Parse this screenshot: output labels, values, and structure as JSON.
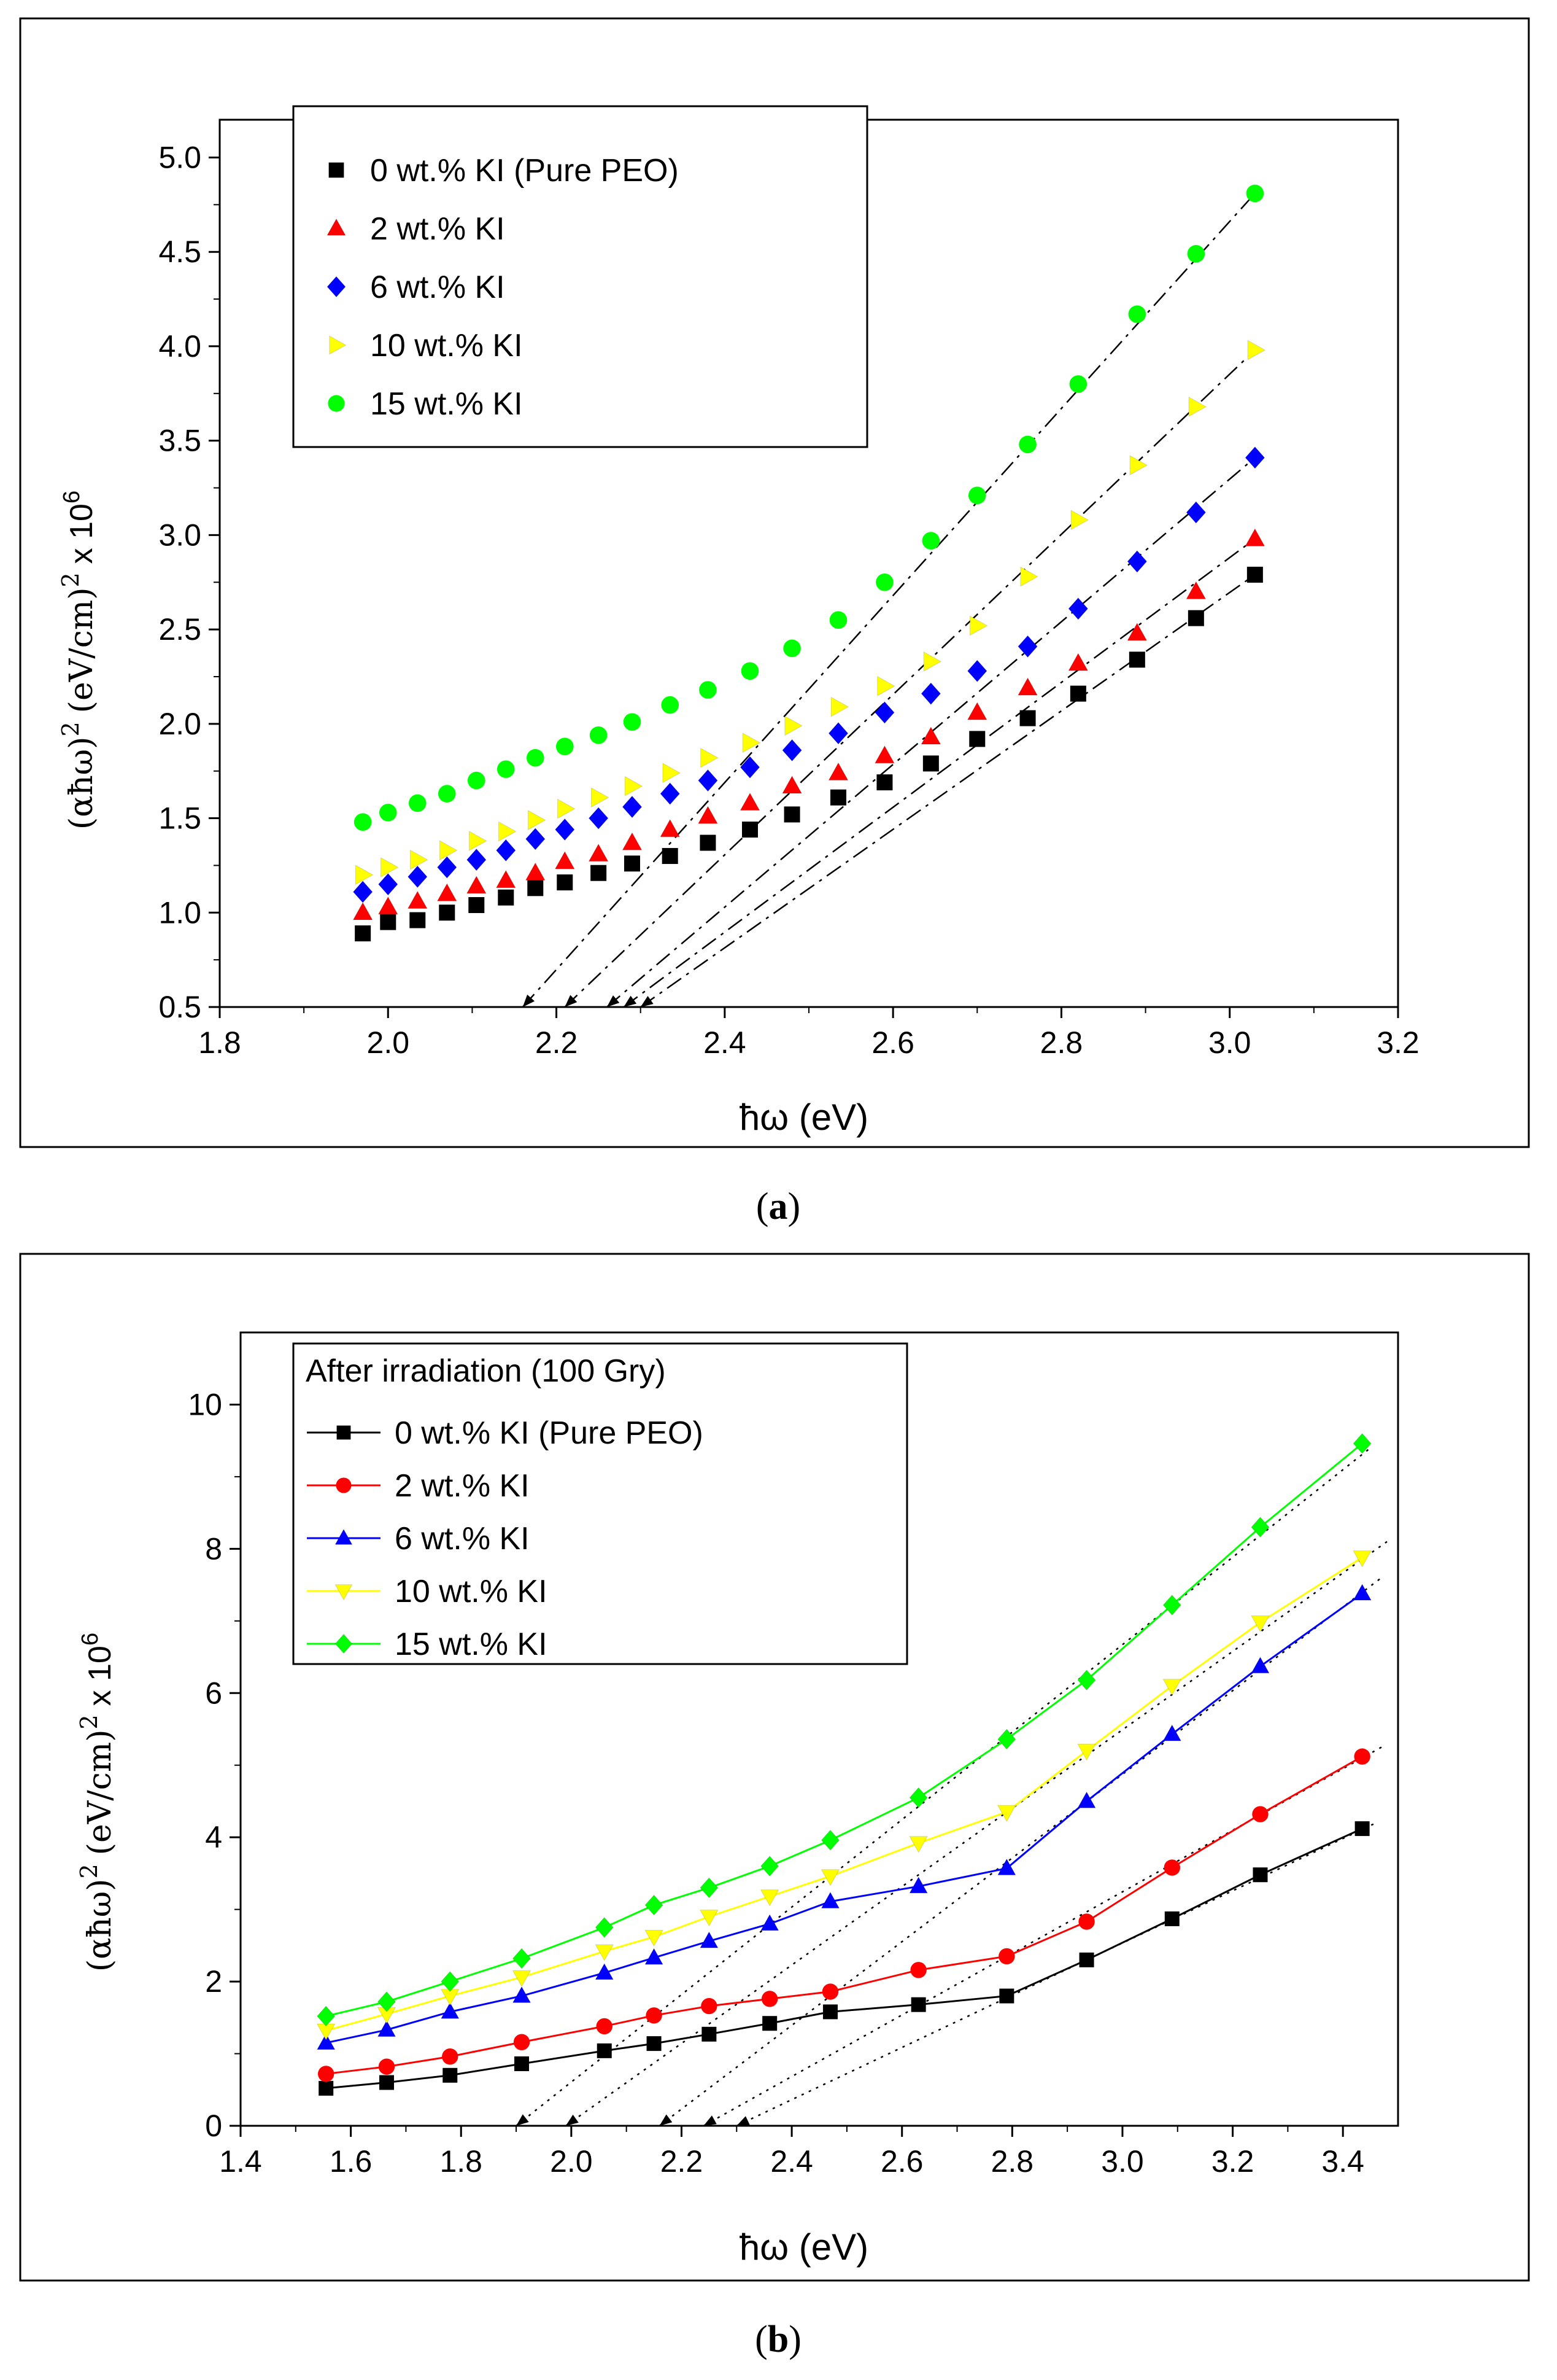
{
  "chart_data": [
    {
      "type": "scatter",
      "panel": "a",
      "caption_open": "(",
      "caption_letter": "a",
      "caption_close": ")",
      "xlabel": "ħω (eV)",
      "ylabel": "(αħω)² (eV/cm)² x 10⁶",
      "ylabel_main": "(αħω)",
      "ylabel_sup1": "2",
      "ylabel_units": "(eV/cm)",
      "ylabel_sup2": "2",
      "ylabel_x": "x 10",
      "ylabel_sup3": "6",
      "xlim": [
        1.8,
        3.2
      ],
      "ylim": [
        0.5,
        5.2
      ],
      "xticks": [
        "1.8",
        "2.0",
        "2.2",
        "2.4",
        "2.6",
        "2.8",
        "3.0",
        "3.2"
      ],
      "yticks": [
        "0.5",
        "1.0",
        "1.5",
        "2.0",
        "2.5",
        "3.0",
        "3.5",
        "4.0",
        "4.5",
        "5.0"
      ],
      "legend_position": "top-left",
      "x": [
        1.97,
        2.0,
        2.035,
        2.07,
        2.105,
        2.14,
        2.175,
        2.21,
        2.25,
        2.29,
        2.335,
        2.38,
        2.43,
        2.48,
        2.535,
        2.59,
        2.645,
        2.7,
        2.76,
        2.82,
        2.89,
        2.96,
        3.03
      ],
      "series": [
        {
          "name": "0   wt.% KI (Pure  PEO)",
          "color": "#000000",
          "marker": "square",
          "values": [
            0.89,
            0.95,
            0.96,
            1.0,
            1.04,
            1.08,
            1.13,
            1.16,
            1.21,
            1.26,
            1.3,
            1.37,
            1.44,
            1.52,
            1.61,
            1.69,
            1.79,
            1.92,
            2.03,
            2.16,
            2.34,
            2.56,
            2.79
          ],
          "fit": [
            [
              2.3,
              0.5
            ],
            [
              3.03,
              2.79
            ]
          ]
        },
        {
          "name": "2   wt.% KI",
          "color": "#ff0000",
          "marker": "triangle-up",
          "values": [
            1.0,
            1.03,
            1.06,
            1.1,
            1.14,
            1.17,
            1.21,
            1.27,
            1.31,
            1.37,
            1.44,
            1.51,
            1.58,
            1.67,
            1.74,
            1.83,
            1.93,
            2.06,
            2.19,
            2.32,
            2.48,
            2.7,
            2.98
          ],
          "fit": [
            [
              2.28,
              0.5
            ],
            [
              3.03,
              2.98
            ]
          ]
        },
        {
          "name": "6   wt.% KI",
          "color": "#0000ff",
          "marker": "diamond",
          "values": [
            1.11,
            1.15,
            1.19,
            1.24,
            1.28,
            1.33,
            1.39,
            1.44,
            1.5,
            1.56,
            1.63,
            1.7,
            1.77,
            1.86,
            1.95,
            2.06,
            2.16,
            2.28,
            2.41,
            2.61,
            2.86,
            3.12,
            3.41
          ],
          "fit": [
            [
              2.26,
              0.5
            ],
            [
              3.03,
              3.41
            ]
          ]
        },
        {
          "name": "10 wt.% KI",
          "color": "#ffff00",
          "marker": "triangle-right",
          "values": [
            1.2,
            1.24,
            1.28,
            1.33,
            1.38,
            1.43,
            1.49,
            1.55,
            1.61,
            1.67,
            1.74,
            1.82,
            1.9,
            1.99,
            2.09,
            2.2,
            2.33,
            2.52,
            2.78,
            3.08,
            3.37,
            3.68,
            3.98
          ],
          "fit": [
            [
              2.21,
              0.5
            ],
            [
              3.03,
              3.98
            ]
          ]
        },
        {
          "name": "15 wt.% KI",
          "color": "#00ff00",
          "marker": "circle",
          "values": [
            1.48,
            1.53,
            1.58,
            1.63,
            1.7,
            1.76,
            1.82,
            1.88,
            1.94,
            2.01,
            2.1,
            2.18,
            2.28,
            2.4,
            2.55,
            2.75,
            2.97,
            3.21,
            3.48,
            3.8,
            4.17,
            4.49,
            4.81
          ],
          "fit": [
            [
              2.16,
              0.5
            ],
            [
              3.03,
              4.81
            ]
          ]
        }
      ]
    },
    {
      "type": "line",
      "panel": "b",
      "caption_open": "(",
      "caption_letter": "b",
      "caption_close": ")",
      "xlabel": "ħω (eV)",
      "ylabel": "(αħω)² (eV/cm)² x 10⁶",
      "ylabel_main": "(αħω)",
      "ylabel_sup1": "2",
      "ylabel_units": "(eV/cm)",
      "ylabel_sup2": "2",
      "ylabel_x": "x 10",
      "ylabel_sup3": "6",
      "legend_title": "After  irradiation (100 Gry)",
      "xlim": [
        1.4,
        3.5
      ],
      "ylim": [
        0,
        11
      ],
      "xticks": [
        "1.4",
        "1.6",
        "1.8",
        "2.0",
        "2.2",
        "2.4",
        "2.6",
        "2.8",
        "3.0",
        "3.2",
        "3.4"
      ],
      "yticks": [
        "0",
        "2",
        "4",
        "6",
        "8",
        "10"
      ],
      "legend_position": "top-left",
      "x": [
        1.555,
        1.665,
        1.78,
        1.91,
        2.06,
        2.15,
        2.25,
        2.36,
        2.47,
        2.63,
        2.79,
        2.935,
        3.09,
        3.25,
        3.435
      ],
      "series": [
        {
          "name": "0   wt.% KI (Pure  PEO)",
          "color": "#000000",
          "marker": "square",
          "values": [
            0.52,
            0.6,
            0.7,
            0.86,
            1.04,
            1.14,
            1.27,
            1.42,
            1.58,
            1.68,
            1.8,
            2.3,
            2.87,
            3.48,
            4.12
          ],
          "fit": [
            [
              2.3,
              0.0
            ],
            [
              3.46,
              4.2
            ]
          ]
        },
        {
          "name": "2   wt.% KI",
          "color": "#ff0000",
          "marker": "circle",
          "values": [
            0.72,
            0.82,
            0.96,
            1.16,
            1.38,
            1.53,
            1.66,
            1.76,
            1.86,
            2.16,
            2.35,
            2.83,
            3.58,
            4.32,
            5.12
          ],
          "fit": [
            [
              2.24,
              0.0
            ],
            [
              3.47,
              5.25
            ]
          ]
        },
        {
          "name": "6   wt.% KI",
          "color": "#0000ff",
          "marker": "triangle-up",
          "values": [
            1.15,
            1.33,
            1.58,
            1.8,
            2.12,
            2.33,
            2.56,
            2.8,
            3.11,
            3.32,
            3.57,
            4.5,
            5.43,
            6.37,
            7.38
          ],
          "fit": [
            [
              2.16,
              0.0
            ],
            [
              3.47,
              7.6
            ]
          ]
        },
        {
          "name": "10 wt.% KI",
          "color": "#ffff00",
          "marker": "triangle-down",
          "values": [
            1.32,
            1.55,
            1.8,
            2.06,
            2.42,
            2.62,
            2.9,
            3.18,
            3.46,
            3.92,
            4.35,
            5.2,
            6.1,
            6.98,
            7.88
          ],
          "fit": [
            [
              1.99,
              0.0
            ],
            [
              3.48,
              8.1
            ]
          ]
        },
        {
          "name": "15 wt.% KI",
          "color": "#00ff00",
          "marker": "diamond",
          "values": [
            1.52,
            1.72,
            2.0,
            2.32,
            2.75,
            3.06,
            3.3,
            3.6,
            3.96,
            4.55,
            5.36,
            6.18,
            7.22,
            8.3,
            9.46
          ],
          "fit": [
            [
              1.9,
              0.0
            ],
            [
              3.45,
              9.4
            ]
          ]
        }
      ]
    }
  ]
}
